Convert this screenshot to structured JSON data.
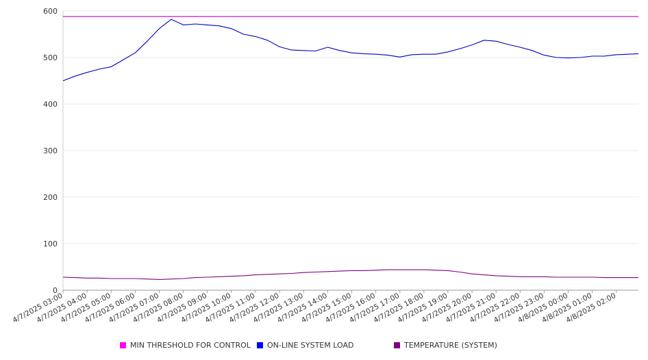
{
  "chart_data": {
    "type": "line",
    "title": "",
    "xlabel": "",
    "ylabel": "",
    "ylim": [
      0,
      600
    ],
    "yticks": [
      0,
      100,
      200,
      300,
      400,
      500,
      600
    ],
    "grid": true,
    "legend_position": "bottom",
    "x_tick_labels": [
      "4/7/2025 03:00",
      "4/7/2025 04:00",
      "4/7/2025 05:00",
      "4/7/2025 06:00",
      "4/7/2025 07:00",
      "4/7/2025 08:00",
      "4/7/2025 09:00",
      "4/7/2025 10:00",
      "4/7/2025 11:00",
      "4/7/2025 12:00",
      "4/7/2025 13:00",
      "4/7/2025 14:00",
      "4/7/2025 15:00",
      "4/7/2025 16:00",
      "4/7/2025 17:00",
      "4/7/2025 18:00",
      "4/7/2025 19:00",
      "4/7/2025 20:00",
      "4/7/2025 21:00",
      "4/7/2025 22:00",
      "4/7/2025 23:00",
      "4/8/2025 00:00",
      "4/8/2025 01:00",
      "4/8/2025 02:00"
    ],
    "x": [
      "4/7/2025 03:00",
      "4/7/2025 03:30",
      "4/7/2025 04:00",
      "4/7/2025 04:30",
      "4/7/2025 05:00",
      "4/7/2025 05:30",
      "4/7/2025 06:00",
      "4/7/2025 06:30",
      "4/7/2025 07:00",
      "4/7/2025 07:30",
      "4/7/2025 08:00",
      "4/7/2025 08:30",
      "4/7/2025 09:00",
      "4/7/2025 09:30",
      "4/7/2025 10:00",
      "4/7/2025 10:30",
      "4/7/2025 11:00",
      "4/7/2025 11:30",
      "4/7/2025 12:00",
      "4/7/2025 12:30",
      "4/7/2025 13:00",
      "4/7/2025 13:30",
      "4/7/2025 14:00",
      "4/7/2025 14:30",
      "4/7/2025 15:00",
      "4/7/2025 15:30",
      "4/7/2025 16:00",
      "4/7/2025 16:30",
      "4/7/2025 17:00",
      "4/7/2025 17:30",
      "4/7/2025 18:00",
      "4/7/2025 18:30",
      "4/7/2025 19:00",
      "4/7/2025 19:30",
      "4/7/2025 20:00",
      "4/7/2025 20:30",
      "4/7/2025 21:00",
      "4/7/2025 21:30",
      "4/7/2025 22:00",
      "4/7/2025 22:30",
      "4/7/2025 23:00",
      "4/7/2025 23:30",
      "4/8/2025 00:00",
      "4/8/2025 00:30",
      "4/8/2025 01:00",
      "4/8/2025 01:30",
      "4/8/2025 02:00",
      "4/8/2025 02:30",
      "4/8/2025 02:55"
    ],
    "series": [
      {
        "name": "MIN THRESHOLD FOR CONTROL",
        "color": "#c000c0",
        "values": [
          588,
          588,
          588,
          588,
          588,
          588,
          588,
          588,
          588,
          588,
          588,
          588,
          588,
          588,
          588,
          588,
          588,
          588,
          588,
          588,
          588,
          588,
          588,
          588,
          588,
          588,
          588,
          588,
          588,
          588,
          588,
          588,
          588,
          588,
          588,
          588,
          588,
          588,
          588,
          588,
          588,
          588,
          588,
          588,
          588,
          588,
          588,
          588,
          588
        ]
      },
      {
        "name": "ON-LINE SYSTEM LOAD",
        "color": "#0000c0",
        "values": [
          450,
          460,
          468,
          475,
          480,
          495,
          510,
          535,
          562,
          582,
          570,
          572,
          570,
          568,
          562,
          550,
          545,
          537,
          523,
          516,
          515,
          514,
          522,
          515,
          510,
          508,
          507,
          505,
          501,
          506,
          507,
          507,
          512,
          519,
          527,
          537,
          535,
          528,
          522,
          515,
          505,
          500,
          499,
          500,
          503,
          503,
          506,
          507,
          508
        ]
      },
      {
        "name": "TEMPERATURE (SYSTEM)",
        "color": "#800080",
        "values": [
          28,
          27,
          26,
          26,
          25,
          25,
          25,
          24,
          23,
          24,
          25,
          27,
          28,
          29,
          30,
          31,
          33,
          34,
          35,
          36,
          38,
          39,
          40,
          41,
          42,
          42,
          43,
          44,
          44,
          44,
          44,
          43,
          42,
          39,
          35,
          33,
          31,
          30,
          29,
          29,
          29,
          28,
          28,
          28,
          28,
          27,
          27,
          27,
          27
        ]
      }
    ]
  }
}
